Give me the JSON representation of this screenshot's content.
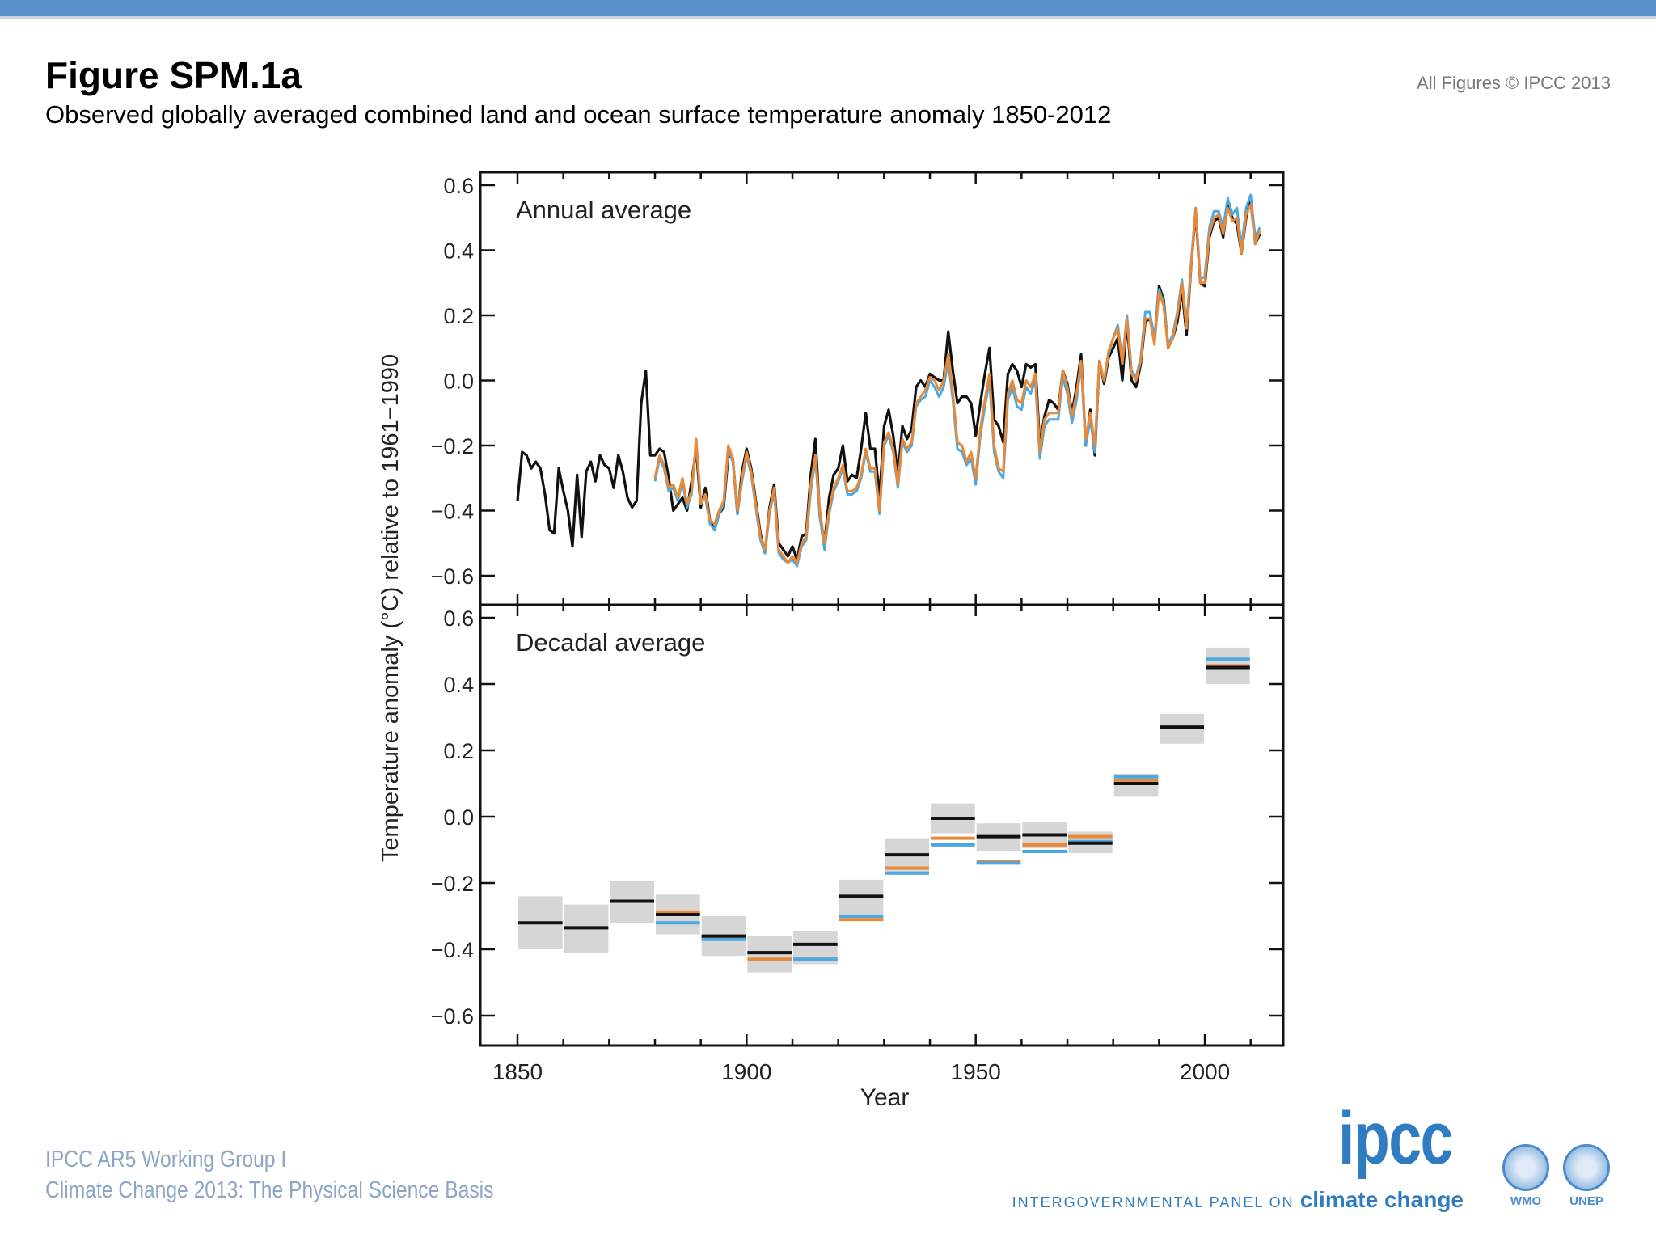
{
  "header": {
    "title": "Figure SPM.1a",
    "subtitle": "Observed globally averaged combined land and ocean surface temperature anomaly 1850-2012",
    "copyright": "All Figures © IPCC 2013"
  },
  "footer": {
    "line1": "IPCC AR5 Working Group I",
    "line2": "Climate Change 2013:  The Physical Science Basis",
    "ipcc_logo": "ipcc",
    "ipcc_tagline": "INTERGOVERNMENTAL PANEL ON",
    "ipcc_tagline_bold": "climate change",
    "wmo": "WMO",
    "unep": "UNEP"
  },
  "colors": {
    "topbar": "#5a8fcc",
    "black": "#111111",
    "orange": "#e8893a",
    "blue": "#4ba8e0",
    "box": "#cfcfcf"
  },
  "chart_data": [
    {
      "type": "line",
      "panel_label": "Annual average",
      "xlabel": "Year",
      "ylabel": "Temperature anomaly (°C) relative to 1961−1990",
      "xlim": [
        1850,
        2012
      ],
      "ylim": [
        -0.6,
        0.6
      ],
      "x_ticks": [
        1850,
        1900,
        1950,
        2000
      ],
      "y_ticks": [
        "0.6",
        "0.4",
        "0.2",
        "0.0",
        "−0.2",
        "−0.4",
        "−0.6"
      ],
      "series": [
        {
          "color": "black",
          "start_year": 1850,
          "values": [
            -0.37,
            -0.22,
            -0.23,
            -0.27,
            -0.25,
            -0.27,
            -0.35,
            -0.46,
            -0.47,
            -0.27,
            -0.34,
            -0.4,
            -0.51,
            -0.29,
            -0.48,
            -0.28,
            -0.25,
            -0.31,
            -0.23,
            -0.26,
            -0.27,
            -0.33,
            -0.23,
            -0.28,
            -0.36,
            -0.39,
            -0.37,
            -0.07,
            0.03,
            -0.23,
            -0.23,
            -0.21,
            -0.22,
            -0.3,
            -0.4,
            -0.38,
            -0.36,
            -0.4,
            -0.31,
            -0.21,
            -0.39,
            -0.33,
            -0.43,
            -0.46,
            -0.41,
            -0.39,
            -0.23,
            -0.24,
            -0.41,
            -0.28,
            -0.21,
            -0.27,
            -0.37,
            -0.47,
            -0.53,
            -0.39,
            -0.32,
            -0.5,
            -0.52,
            -0.54,
            -0.51,
            -0.55,
            -0.48,
            -0.47,
            -0.29,
            -0.18,
            -0.42,
            -0.5,
            -0.36,
            -0.29,
            -0.27,
            -0.2,
            -0.31,
            -0.29,
            -0.3,
            -0.21,
            -0.1,
            -0.21,
            -0.21,
            -0.36,
            -0.14,
            -0.09,
            -0.17,
            -0.29,
            -0.14,
            -0.18,
            -0.15,
            -0.02,
            0.0,
            -0.02,
            0.02,
            0.01,
            0.0,
            0.0,
            0.15,
            0.03,
            -0.07,
            -0.05,
            -0.05,
            -0.07,
            -0.17,
            -0.07,
            0.02,
            0.1,
            -0.12,
            -0.14,
            -0.19,
            0.02,
            0.05,
            0.03,
            -0.02,
            0.05,
            0.04,
            0.05,
            -0.2,
            -0.11,
            -0.06,
            -0.07,
            -0.09,
            0.03,
            -0.01,
            -0.1,
            -0.02,
            0.08,
            -0.2,
            -0.09,
            -0.23,
            0.06,
            -0.01,
            0.07,
            0.1,
            0.13,
            0.0,
            0.18,
            0.0,
            -0.02,
            0.05,
            0.18,
            0.19,
            0.12,
            0.29,
            0.25,
            0.1,
            0.13,
            0.18,
            0.28,
            0.14,
            0.35,
            0.52,
            0.3,
            0.29,
            0.44,
            0.49,
            0.5,
            0.44,
            0.54,
            0.5,
            0.48,
            0.39,
            0.5,
            0.56,
            0.42,
            0.45
          ]
        },
        {
          "color": "blue",
          "start_year": 1880,
          "values": [
            -0.31,
            -0.24,
            -0.27,
            -0.34,
            -0.33,
            -0.37,
            -0.31,
            -0.39,
            -0.35,
            -0.19,
            -0.37,
            -0.36,
            -0.44,
            -0.46,
            -0.41,
            -0.38,
            -0.21,
            -0.25,
            -0.41,
            -0.31,
            -0.23,
            -0.29,
            -0.39,
            -0.49,
            -0.53,
            -0.41,
            -0.34,
            -0.53,
            -0.55,
            -0.56,
            -0.55,
            -0.57,
            -0.51,
            -0.49,
            -0.34,
            -0.24,
            -0.42,
            -0.52,
            -0.41,
            -0.34,
            -0.31,
            -0.27,
            -0.35,
            -0.35,
            -0.34,
            -0.3,
            -0.22,
            -0.28,
            -0.28,
            -0.41,
            -0.2,
            -0.17,
            -0.22,
            -0.33,
            -0.19,
            -0.22,
            -0.2,
            -0.08,
            -0.06,
            -0.05,
            0.0,
            -0.02,
            -0.05,
            -0.02,
            0.06,
            -0.06,
            -0.21,
            -0.22,
            -0.26,
            -0.24,
            -0.32,
            -0.17,
            -0.08,
            0.0,
            -0.22,
            -0.28,
            -0.3,
            -0.06,
            -0.02,
            -0.08,
            -0.09,
            -0.02,
            -0.04,
            0.0,
            -0.24,
            -0.14,
            -0.12,
            -0.12,
            -0.12,
            0.01,
            -0.04,
            -0.13,
            -0.06,
            0.05,
            -0.2,
            -0.12,
            -0.22,
            0.05,
            0.0,
            0.08,
            0.13,
            0.17,
            0.06,
            0.2,
            0.03,
            0.01,
            0.07,
            0.21,
            0.21,
            0.13,
            0.28,
            0.24,
            0.11,
            0.14,
            0.21,
            0.31,
            0.17,
            0.36,
            0.53,
            0.31,
            0.32,
            0.47,
            0.52,
            0.52,
            0.47,
            0.56,
            0.51,
            0.53,
            0.41,
            0.53,
            0.57,
            0.44,
            0.47
          ]
        },
        {
          "color": "orange",
          "start_year": 1880,
          "values": [
            -0.3,
            -0.23,
            -0.26,
            -0.33,
            -0.32,
            -0.36,
            -0.3,
            -0.38,
            -0.34,
            -0.18,
            -0.38,
            -0.35,
            -0.43,
            -0.44,
            -0.4,
            -0.37,
            -0.2,
            -0.24,
            -0.4,
            -0.3,
            -0.22,
            -0.28,
            -0.38,
            -0.48,
            -0.52,
            -0.4,
            -0.33,
            -0.52,
            -0.54,
            -0.56,
            -0.54,
            -0.56,
            -0.5,
            -0.48,
            -0.32,
            -0.23,
            -0.4,
            -0.5,
            -0.4,
            -0.33,
            -0.3,
            -0.26,
            -0.34,
            -0.34,
            -0.33,
            -0.29,
            -0.21,
            -0.27,
            -0.27,
            -0.4,
            -0.19,
            -0.16,
            -0.21,
            -0.32,
            -0.18,
            -0.21,
            -0.19,
            -0.07,
            -0.05,
            -0.03,
            0.01,
            0.0,
            -0.03,
            0.0,
            0.08,
            -0.04,
            -0.19,
            -0.2,
            -0.25,
            -0.22,
            -0.3,
            -0.15,
            -0.06,
            0.02,
            -0.2,
            -0.27,
            -0.28,
            -0.04,
            0.0,
            -0.06,
            -0.07,
            0.0,
            -0.02,
            0.02,
            -0.22,
            -0.12,
            -0.1,
            -0.1,
            -0.1,
            0.03,
            -0.02,
            -0.11,
            -0.04,
            0.06,
            -0.18,
            -0.1,
            -0.2,
            0.06,
            0.0,
            0.09,
            0.13,
            0.16,
            0.05,
            0.19,
            0.02,
            0.0,
            0.06,
            0.19,
            0.19,
            0.11,
            0.27,
            0.23,
            0.1,
            0.13,
            0.2,
            0.3,
            0.16,
            0.35,
            0.53,
            0.3,
            0.3,
            0.45,
            0.5,
            0.51,
            0.45,
            0.53,
            0.49,
            0.5,
            0.39,
            0.51,
            0.54,
            0.42,
            0.46
          ]
        }
      ]
    },
    {
      "type": "bar",
      "panel_label": "Decadal average",
      "xlabel": "Year",
      "ylim": [
        -0.6,
        0.6
      ],
      "y_ticks": [
        "0.6",
        "0.4",
        "0.2",
        "0.0",
        "−0.2",
        "−0.4",
        "−0.6"
      ],
      "decades": [
        1850,
        1860,
        1870,
        1880,
        1890,
        1900,
        1910,
        1920,
        1930,
        1940,
        1950,
        1960,
        1970,
        1980,
        1990,
        2000
      ],
      "uncertainty_low": [
        -0.4,
        -0.41,
        -0.32,
        -0.355,
        -0.42,
        -0.47,
        -0.445,
        -0.3,
        -0.175,
        -0.05,
        -0.105,
        -0.095,
        -0.11,
        0.06,
        0.22,
        0.4
      ],
      "uncertainty_high": [
        -0.24,
        -0.265,
        -0.195,
        -0.235,
        -0.3,
        -0.36,
        -0.345,
        -0.19,
        -0.065,
        0.04,
        -0.02,
        -0.015,
        -0.045,
        0.13,
        0.31,
        0.51
      ],
      "series": [
        {
          "color": "orange",
          "values": [
            null,
            null,
            null,
            -0.29,
            -0.365,
            -0.43,
            -0.43,
            -0.31,
            -0.155,
            -0.065,
            -0.135,
            -0.085,
            -0.06,
            0.11,
            0.27,
            0.455
          ]
        },
        {
          "color": "blue",
          "values": [
            null,
            null,
            null,
            -0.32,
            -0.37,
            -0.41,
            -0.43,
            -0.3,
            -0.17,
            -0.085,
            -0.14,
            -0.105,
            -0.075,
            0.12,
            0.27,
            0.475
          ]
        },
        {
          "color": "black",
          "values": [
            -0.32,
            -0.335,
            -0.255,
            -0.295,
            -0.36,
            -0.41,
            -0.385,
            -0.24,
            -0.115,
            -0.005,
            -0.06,
            -0.055,
            -0.08,
            0.1,
            0.27,
            0.45
          ]
        }
      ]
    }
  ]
}
